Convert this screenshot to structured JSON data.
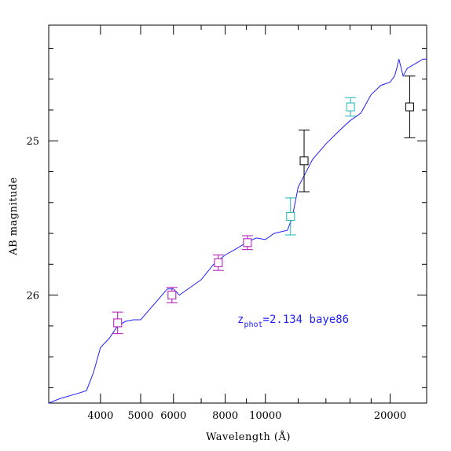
{
  "chart_data": {
    "type": "scatter",
    "title": "",
    "xlabel": "Wavelength (Å)",
    "ylabel": "AB magnitude",
    "x_scale": "log",
    "xlim": [
      3000,
      24500
    ],
    "ylim": [
      26.7,
      24.25
    ],
    "y_inverted": true,
    "x_major_ticks": [
      4000,
      5000,
      6000,
      8000,
      10000,
      20000
    ],
    "x_tick_labels": [
      "4000",
      "5000",
      "6000",
      "8000",
      "10000",
      "20000"
    ],
    "x_minor_ticks": [
      3000,
      7000,
      9000,
      12000,
      14000,
      16000,
      18000
    ],
    "y_major_ticks": [
      25,
      26
    ],
    "y_tick_labels": [
      "25",
      "26"
    ],
    "y_minor_ticks": [
      24.4,
      24.6,
      24.8,
      25.2,
      25.4,
      25.6,
      25.8,
      26.2,
      26.4,
      26.6
    ],
    "grid": false,
    "annotation": {
      "text_main": "z",
      "text_sub": "phot",
      "text_rest": "=2.134 baye86",
      "color": "#1f1fff"
    },
    "template_line": {
      "name": "",
      "color": "#1f1fff",
      "x": [
        3000,
        3200,
        3500,
        3700,
        3850,
        4000,
        4200,
        4400,
        4600,
        4800,
        5000,
        5800,
        6000,
        6200,
        7000,
        7500,
        8000,
        8500,
        9000,
        9500,
        10000,
        10500,
        11300,
        11600,
        12000,
        13000,
        14000,
        15000,
        16000,
        17000,
        18000,
        19000,
        20000,
        20500,
        20800,
        21000,
        21500,
        22000,
        23000,
        24000,
        24500
      ],
      "y": [
        26.7,
        26.67,
        26.64,
        26.62,
        26.5,
        26.34,
        26.28,
        26.2,
        26.17,
        26.16,
        26.16,
        25.96,
        25.96,
        26.0,
        25.9,
        25.8,
        25.74,
        25.7,
        25.66,
        25.63,
        25.64,
        25.6,
        25.58,
        25.5,
        25.3,
        25.12,
        25.02,
        24.94,
        24.87,
        24.82,
        24.7,
        24.64,
        24.62,
        24.58,
        24.52,
        24.47,
        24.58,
        24.53,
        24.5,
        24.47,
        24.47
      ]
    },
    "series": [
      {
        "color": "#b010b8",
        "points": [
          {
            "x": 4400,
            "y": 26.18,
            "err": 0.07
          },
          {
            "x": 5950,
            "y": 26.0,
            "err": 0.05
          },
          {
            "x": 7700,
            "y": 25.79,
            "err": 0.05
          },
          {
            "x": 9050,
            "y": 25.66,
            "err": 0.045
          }
        ]
      },
      {
        "color": "#20b4b4",
        "points": [
          {
            "x": 11500,
            "y": 25.49,
            "err": 0.12
          },
          {
            "x": 16050,
            "y": 24.78,
            "err": 0.06
          }
        ]
      },
      {
        "color": "#000000",
        "points": [
          {
            "x": 12400,
            "y": 25.13,
            "err": 0.2
          },
          {
            "x": 22300,
            "y": 24.78,
            "err": 0.2
          }
        ]
      }
    ]
  }
}
